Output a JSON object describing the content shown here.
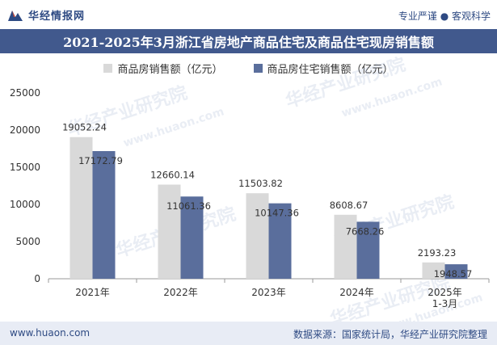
{
  "header": {
    "brand": "华经情报网",
    "slogan": "专业严谨 ● 客观科学"
  },
  "watermark_text": "华经产业研究院",
  "watermark_url": "www.huaon.com",
  "footer": {
    "url": "www.huaon.com",
    "source": "数据来源：国家统计局，华经产业研究院整理"
  },
  "colors": {
    "title_bg": "#41598d",
    "series1": "#d9d9d9",
    "series2": "#5a6e9c",
    "footer_bg": "#e8ecf5"
  },
  "chart_data": {
    "type": "bar",
    "title": "2021-2025年3月浙江省房地产商品住宅及商品住宅现房销售额",
    "categories": [
      "2021年",
      "2022年",
      "2023年",
      "2024年",
      "2025年\n1-3月"
    ],
    "series": [
      {
        "name": "商品房销售额（亿元）",
        "values": [
          19052.24,
          12660.14,
          11503.82,
          8608.67,
          2193.23
        ]
      },
      {
        "name": "商品房住宅销售额（亿元）",
        "values": [
          17172.79,
          11061.36,
          10147.36,
          7668.26,
          1948.57
        ]
      }
    ],
    "yticks": [
      0,
      5000,
      10000,
      15000,
      20000,
      25000
    ],
    "ylim": [
      0,
      25000
    ],
    "grid": false,
    "legend_position": "top-center"
  }
}
